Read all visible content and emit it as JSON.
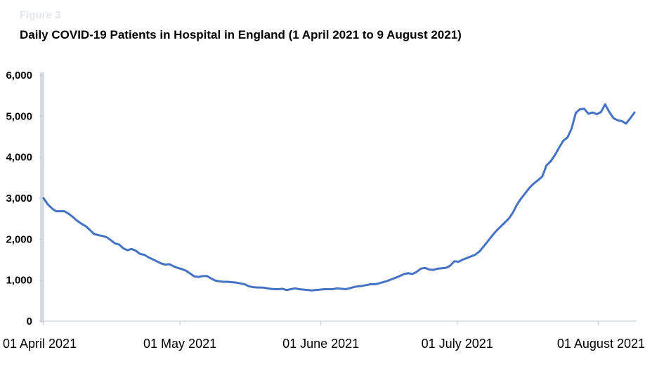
{
  "header": {
    "figure_label": "Figure 3",
    "title": "Daily COVID-19 Patients in Hospital in England (1 April 2021 to 9 August 2021)"
  },
  "colors": {
    "line": "#4472c4",
    "axis": "#bfc7cf",
    "axis_bar": "#d6dce2"
  },
  "chart_data": {
    "type": "line",
    "title": "Daily COVID-19 Patients in Hospital in England (1 April 2021 to 9 August 2021)",
    "xlabel": "",
    "ylabel": "",
    "ylim": [
      0,
      6000
    ],
    "y_ticks": [
      0,
      1000,
      2000,
      3000,
      4000,
      5000,
      6000
    ],
    "y_tick_labels": [
      "0",
      "1,000",
      "2,000",
      "3,000",
      "4,000",
      "5,000",
      "6,000"
    ],
    "x_tick_labels": [
      "01 April 2021",
      "01 May 2021",
      "01 June 2021",
      "01 July 2021",
      "01 August 2021"
    ],
    "x_tick_days": [
      0,
      30,
      61,
      91,
      122
    ],
    "x_range_days": [
      0,
      130
    ],
    "grid": false,
    "series": [
      {
        "values": [
          3000,
          2850,
          2750,
          2680,
          2680,
          2680,
          2620,
          2540,
          2450,
          2380,
          2320,
          2230,
          2130,
          2100,
          2080,
          2050,
          1980,
          1900,
          1870,
          1780,
          1730,
          1760,
          1720,
          1640,
          1620,
          1560,
          1510,
          1460,
          1410,
          1380,
          1390,
          1340,
          1300,
          1270,
          1230,
          1160,
          1090,
          1080,
          1100,
          1100,
          1040,
          990,
          970,
          960,
          960,
          950,
          940,
          920,
          900,
          850,
          830,
          820,
          820,
          810,
          790,
          780,
          780,
          790,
          760,
          780,
          800,
          780,
          770,
          760,
          750,
          760,
          770,
          780,
          780,
          780,
          800,
          790,
          780,
          800,
          830,
          850,
          860,
          880,
          900,
          900,
          920,
          950,
          980,
          1020,
          1060,
          1100,
          1150,
          1170,
          1150,
          1200,
          1280,
          1300,
          1260,
          1250,
          1280,
          1290,
          1300,
          1350,
          1460,
          1450,
          1500,
          1540,
          1580,
          1620,
          1700,
          1820,
          1950,
          2080,
          2200,
          2300,
          2400,
          2500,
          2650,
          2850,
          3000,
          3130,
          3260,
          3360,
          3440,
          3530,
          3800,
          3900,
          4050,
          4230,
          4400,
          4480,
          4700,
          5080,
          5170,
          5180,
          5060,
          5090,
          5050,
          5100,
          5290,
          5100,
          4950,
          4900,
          4880,
          4820,
          4950,
          5090
        ]
      }
    ]
  }
}
